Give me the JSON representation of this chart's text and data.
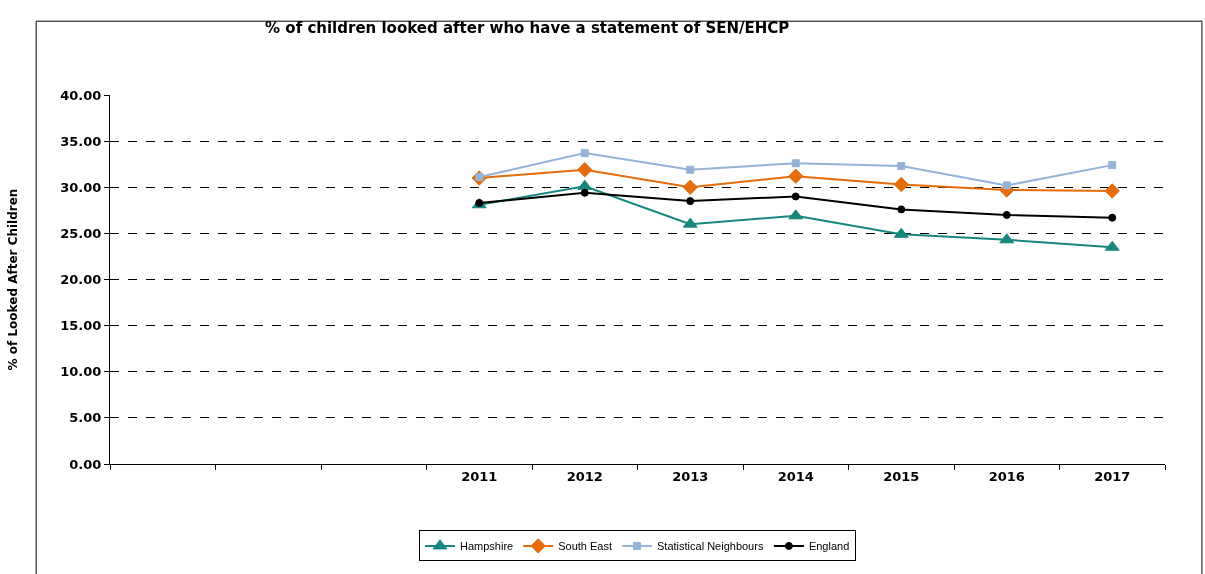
{
  "chart_data": {
    "type": "line",
    "title": "% of children looked after who have a statement of SEN/EHCP",
    "ylabel": "% of Looked After Children",
    "categories": [
      null,
      null,
      null,
      "2011",
      "2012",
      "2013",
      "2014",
      "2015",
      "2016",
      "2017"
    ],
    "series": [
      {
        "name": "Hampshire",
        "color": "#17877d",
        "marker": "triangle",
        "values": [
          null,
          null,
          null,
          28.1,
          30.1,
          26.0,
          26.9,
          24.9,
          24.3,
          23.5
        ]
      },
      {
        "name": "South East",
        "color": "#e46c0a",
        "marker": "diamond",
        "values": [
          null,
          null,
          null,
          31.0,
          31.9,
          30.0,
          31.2,
          30.3,
          29.7,
          29.6
        ]
      },
      {
        "name": "Statistical Neighbours",
        "color": "#95b3d7",
        "marker": "square",
        "values": [
          null,
          null,
          null,
          31.1,
          33.7,
          31.9,
          32.6,
          32.3,
          30.2,
          32.4
        ]
      },
      {
        "name": "England",
        "color": "#000000",
        "marker": "circle",
        "values": [
          null,
          null,
          null,
          28.3,
          29.4,
          28.5,
          29.0,
          27.6,
          27.0,
          26.7
        ]
      }
    ],
    "ylim": [
      0,
      40
    ],
    "yticks": [
      {
        "value": 0,
        "label": "0.00"
      },
      {
        "value": 5,
        "label": "5.00"
      },
      {
        "value": 10,
        "label": "10.00"
      },
      {
        "value": 15,
        "label": "15.00"
      },
      {
        "value": 20,
        "label": "20.00"
      },
      {
        "value": 25,
        "label": "25.00"
      },
      {
        "value": 30,
        "label": "30.00"
      },
      {
        "value": 35,
        "label": "35.00"
      },
      {
        "value": 40,
        "label": "40.00"
      }
    ],
    "grid": "y",
    "legend": "bottom",
    "line_style": "solid"
  }
}
